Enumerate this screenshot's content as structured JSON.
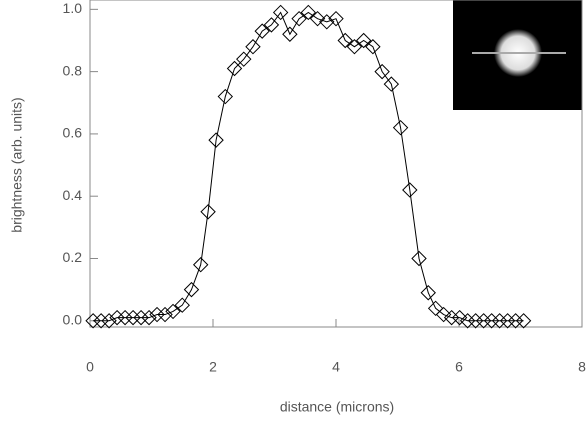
{
  "chart_data": {
    "type": "line",
    "xlabel": "distance (microns)",
    "ylabel": "brightness (arb. units)",
    "series": [
      {
        "color": "#000000",
        "x": [
          0.05,
          0.18,
          0.31,
          0.44,
          0.57,
          0.7,
          0.83,
          0.96,
          1.09,
          1.22,
          1.35,
          1.5,
          1.65,
          1.8,
          1.92,
          2.05,
          2.2,
          2.35,
          2.5,
          2.65,
          2.8,
          2.95,
          3.1,
          3.25,
          3.4,
          3.55,
          3.7,
          3.85,
          4.0,
          4.15,
          4.3,
          4.45,
          4.6,
          4.75,
          4.9,
          5.05,
          5.2,
          5.35,
          5.5,
          5.62,
          5.75,
          5.88,
          6.01,
          6.14,
          6.27,
          6.4,
          6.53,
          6.66,
          6.79,
          6.92,
          7.05
        ],
        "y": [
          0.0,
          0.0,
          0.0,
          0.01,
          0.01,
          0.01,
          0.01,
          0.01,
          0.02,
          0.02,
          0.03,
          0.05,
          0.1,
          0.18,
          0.35,
          0.58,
          0.72,
          0.81,
          0.84,
          0.88,
          0.93,
          0.95,
          0.99,
          0.92,
          0.97,
          0.99,
          0.97,
          0.96,
          0.97,
          0.9,
          0.88,
          0.9,
          0.88,
          0.8,
          0.76,
          0.62,
          0.42,
          0.2,
          0.09,
          0.04,
          0.02,
          0.01,
          0.01,
          0.0,
          0.0,
          0.0,
          0.0,
          0.0,
          0.0,
          0.0,
          0.0
        ]
      }
    ],
    "xlim": [
      0,
      8
    ],
    "xticks": [
      0,
      2,
      4,
      6,
      8
    ],
    "ylim": [
      -0.02,
      1.03
    ],
    "yticks": [
      {
        "value": 0,
        "label": "0.0"
      },
      0.2,
      0.4,
      0.6,
      0.8,
      {
        "value": 1,
        "label": "1.0"
      }
    ]
  }
}
